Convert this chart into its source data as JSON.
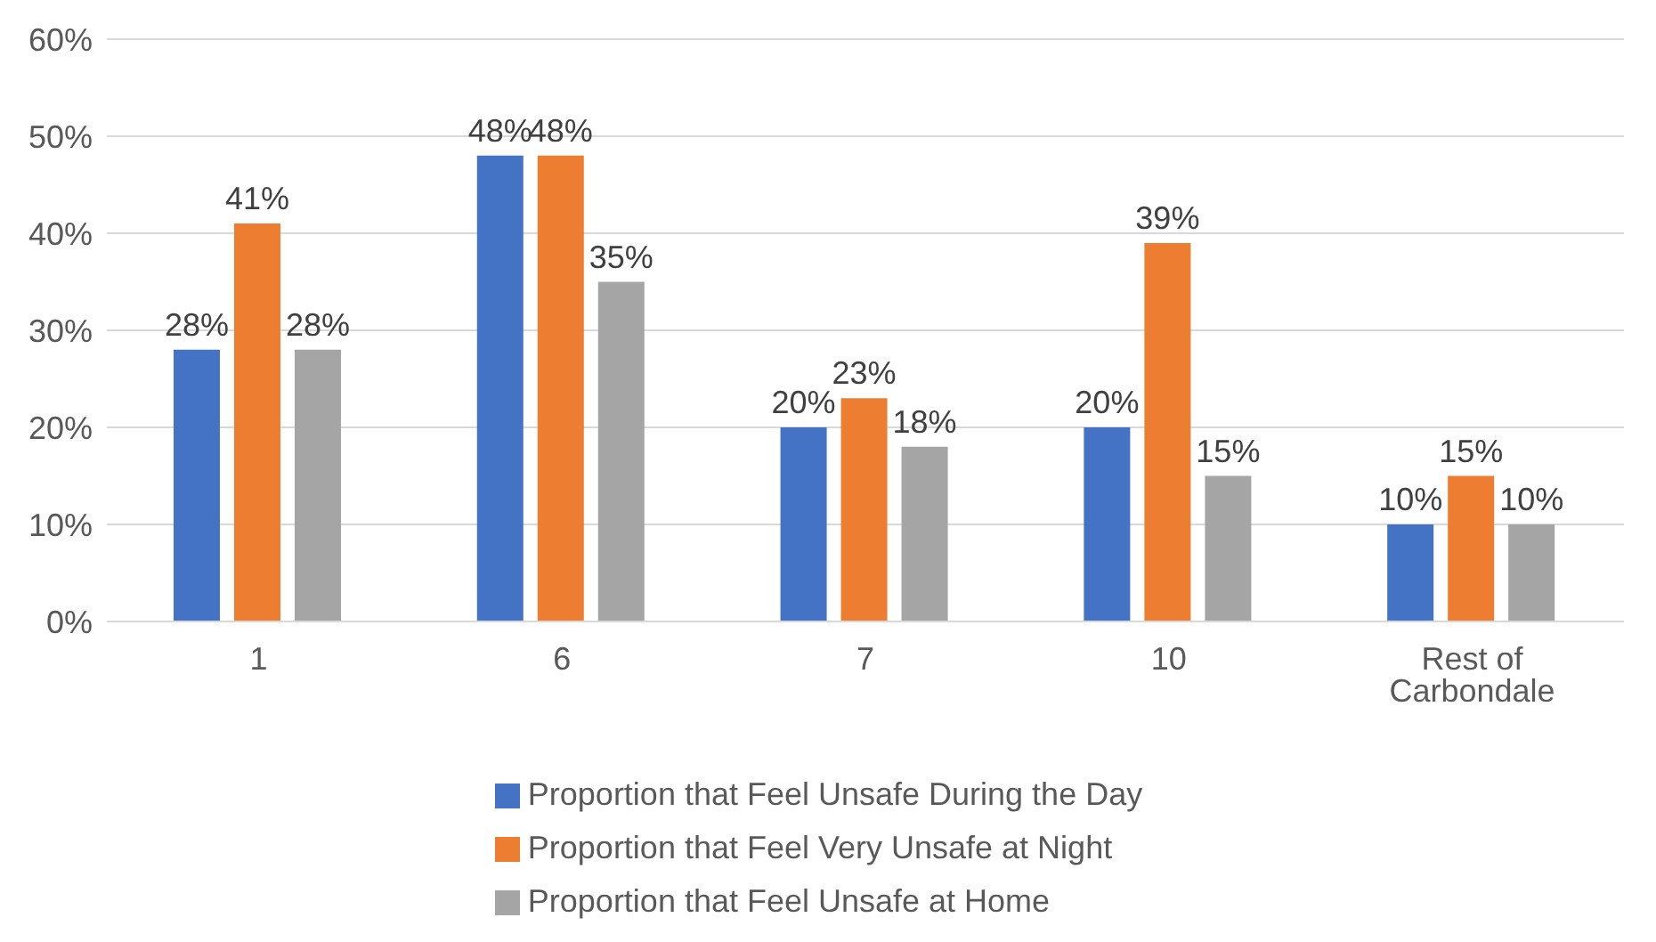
{
  "chart_data": {
    "type": "bar",
    "categories": [
      "1",
      "6",
      "7",
      "10",
      "Rest of Carbondale"
    ],
    "series": [
      {
        "name": "Proportion that Feel Unsafe During the Day",
        "color": "#4472c4",
        "values": [
          28,
          48,
          20,
          20,
          10
        ],
        "value_labels": [
          "28%",
          "48%",
          "20%",
          "20%",
          "10%"
        ]
      },
      {
        "name": "Proportion that Feel Very Unsafe at Night",
        "color": "#ed7d31",
        "values": [
          41,
          48,
          23,
          39,
          15
        ],
        "value_labels": [
          "41%",
          "48%",
          "23%",
          "39%",
          "15%"
        ]
      },
      {
        "name": "Proportion that Feel Unsafe at Home",
        "color": "#a5a5a5",
        "values": [
          28,
          35,
          18,
          15,
          10
        ],
        "value_labels": [
          "28%",
          "35%",
          "18%",
          "15%",
          "10%"
        ]
      }
    ],
    "ylim": [
      0,
      60
    ],
    "yticks": [
      {
        "value": 0,
        "label": "0%"
      },
      {
        "value": 10,
        "label": "10%"
      },
      {
        "value": 20,
        "label": "20%"
      },
      {
        "value": 30,
        "label": "30%"
      },
      {
        "value": 40,
        "label": "40%"
      },
      {
        "value": 50,
        "label": "50%"
      },
      {
        "value": 60,
        "label": "60%"
      }
    ],
    "grid": "y",
    "legend": "bottom"
  }
}
